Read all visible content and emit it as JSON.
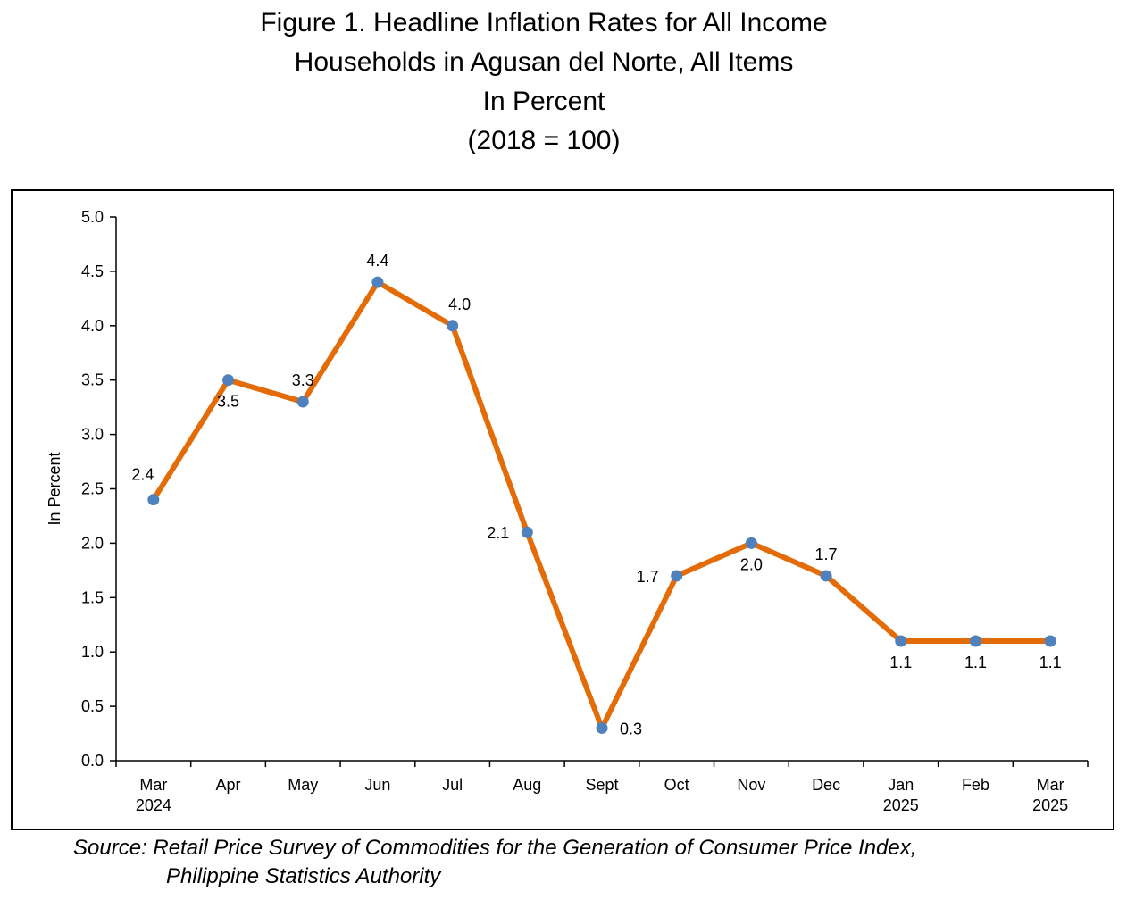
{
  "title": {
    "line1": "Figure 1. Headline Inflation Rates for All Income",
    "line2": "Households in Agusan del Norte, All Items",
    "line3": "In Percent",
    "line4": "(2018 = 100)"
  },
  "source": {
    "line1": "Source: Retail Price Survey of Commodities for the Generation of Consumer Price Index,",
    "line2": "Philippine Statistics Authority"
  },
  "colors": {
    "line": "#E36C09",
    "marker": "#4F81BD",
    "axis": "#000000"
  },
  "chart_data": {
    "type": "line",
    "ylabel": "In  Percent",
    "ylim": [
      0,
      5
    ],
    "y_ticks": [
      "0.0",
      "0.5",
      "1.0",
      "1.5",
      "2.0",
      "2.5",
      "3.0",
      "3.5",
      "4.0",
      "4.5",
      "5.0"
    ],
    "categories": [
      [
        "Mar",
        "2024"
      ],
      [
        "Apr"
      ],
      [
        "May"
      ],
      [
        "Jun"
      ],
      [
        "Jul"
      ],
      [
        "Aug"
      ],
      [
        "Sept"
      ],
      [
        "Oct"
      ],
      [
        "Nov"
      ],
      [
        "Dec"
      ],
      [
        "Jan",
        "2025"
      ],
      [
        "Feb"
      ],
      [
        "Mar",
        "2025"
      ]
    ],
    "values": [
      2.4,
      3.5,
      3.3,
      4.4,
      4.0,
      2.1,
      0.3,
      1.7,
      2.0,
      1.7,
      1.1,
      1.1,
      1.1
    ],
    "value_labels": [
      "2.4",
      "3.5",
      "3.3",
      "4.4",
      "4.0",
      "2.1",
      "0.3",
      "1.7",
      "2.0",
      "1.7",
      "1.1",
      "1.1",
      "1.1"
    ],
    "label_positions": [
      "above-left",
      "below",
      "above",
      "above",
      "above-right",
      "left",
      "right",
      "left",
      "below",
      "above",
      "below",
      "below",
      "below"
    ],
    "grid": false,
    "legend": "none"
  }
}
